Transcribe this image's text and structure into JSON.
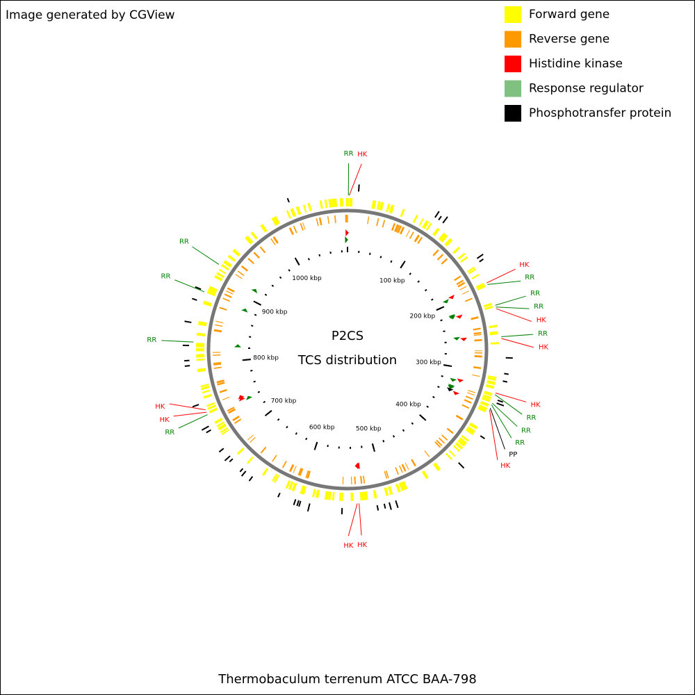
{
  "credit": "Image generated by CGView",
  "center_title": "P2CS",
  "center_subtitle": "TCS distribution",
  "caption": "Thermobaculum terrenum ATCC BAA-798",
  "legend": [
    {
      "label": "Forward gene",
      "color": "#ffff00"
    },
    {
      "label": "Reverse gene",
      "color": "#ff9900"
    },
    {
      "label": "Histidine kinase",
      "color": "#ff0000"
    },
    {
      "label": "Response regulator",
      "color": "#80c080"
    },
    {
      "label": "Phosphotransfer protein",
      "color": "#000000"
    }
  ],
  "genome_kbp": 1090,
  "scale_ticks": [
    {
      "value": 100,
      "label": "100 kbp"
    },
    {
      "value": 200,
      "label": "200 kbp"
    },
    {
      "value": 300,
      "label": "300 kbp"
    },
    {
      "value": 400,
      "label": "400 kbp"
    },
    {
      "value": 500,
      "label": "500 kbp"
    },
    {
      "value": 600,
      "label": "600 kbp"
    },
    {
      "value": 700,
      "label": "700 kbp"
    },
    {
      "value": 800,
      "label": "800 kbp"
    },
    {
      "value": 900,
      "label": "900 kbp"
    },
    {
      "value": 1000,
      "label": "1000 kbp"
    }
  ],
  "features": [
    {
      "label": "RR",
      "kbp": 1,
      "color": "#008000"
    },
    {
      "label": "HK",
      "kbp": 2,
      "color": "#ff0000"
    },
    {
      "label": "HK",
      "kbp": 195,
      "color": "#ff0000"
    },
    {
      "label": "RR",
      "kbp": 197,
      "color": "#008000"
    },
    {
      "label": "RR",
      "kbp": 222,
      "color": "#008000"
    },
    {
      "label": "RR",
      "kbp": 224,
      "color": "#008000"
    },
    {
      "label": "HK",
      "kbp": 226,
      "color": "#ff0000"
    },
    {
      "label": "RR",
      "kbp": 258,
      "color": "#008000"
    },
    {
      "label": "HK",
      "kbp": 260,
      "color": "#ff0000"
    },
    {
      "label": "HK",
      "kbp": 322,
      "color": "#ff0000"
    },
    {
      "label": "RR",
      "kbp": 324,
      "color": "#008000"
    },
    {
      "label": "RR",
      "kbp": 334,
      "color": "#008000"
    },
    {
      "label": "RR",
      "kbp": 336,
      "color": "#008000"
    },
    {
      "label": "PP",
      "kbp": 340,
      "color": "#000000"
    },
    {
      "label": "HK",
      "kbp": 342,
      "color": "#ff0000"
    },
    {
      "label": "HK",
      "kbp": 532,
      "color": "#ff0000"
    },
    {
      "label": "HK",
      "kbp": 534,
      "color": "#ff0000"
    },
    {
      "label": "RR",
      "kbp": 742,
      "color": "#008000"
    },
    {
      "label": "HK",
      "kbp": 745,
      "color": "#ff0000"
    },
    {
      "label": "HK",
      "kbp": 748,
      "color": "#ff0000"
    },
    {
      "label": "RR",
      "kbp": 826,
      "color": "#008000"
    },
    {
      "label": "RR",
      "kbp": 884,
      "color": "#008000"
    },
    {
      "label": "RR",
      "kbp": 919,
      "color": "#008000"
    }
  ]
}
